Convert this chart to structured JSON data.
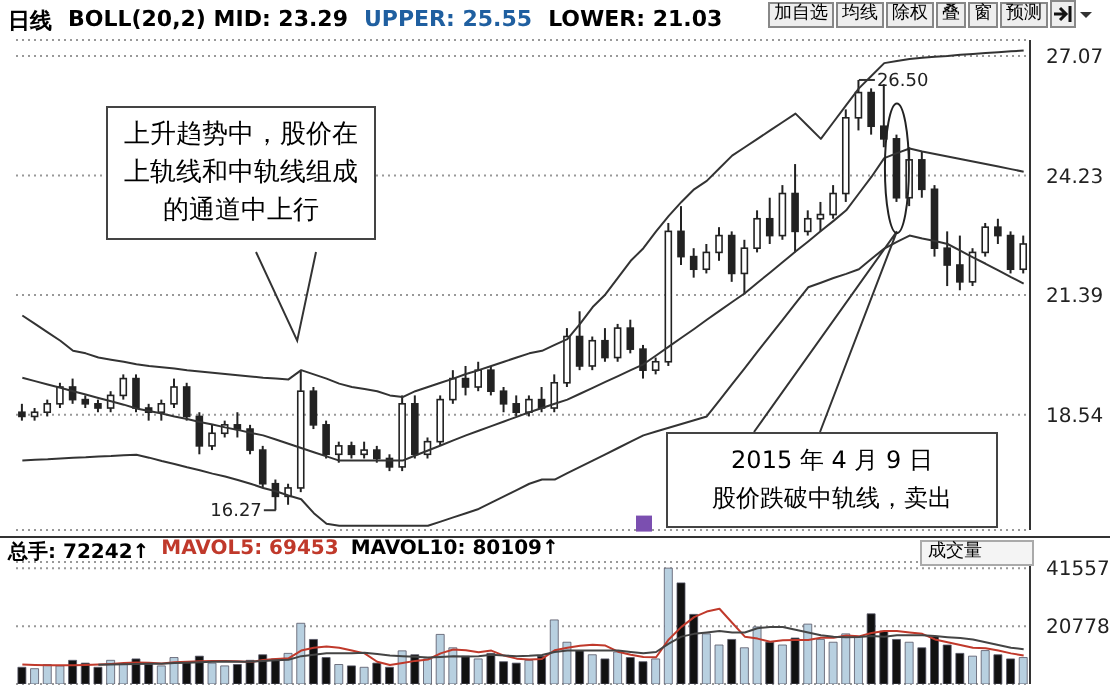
{
  "chart_data": [
    {
      "type": "candlestick",
      "title": "日线",
      "color": "#222222",
      "categories": [
        null,
        null,
        null,
        null,
        null,
        null,
        null,
        null,
        null,
        null,
        null,
        null,
        null,
        null,
        null,
        null,
        null,
        null,
        null,
        null,
        null,
        null,
        null,
        null,
        null,
        null,
        null,
        null,
        null,
        null,
        null,
        null,
        null,
        null,
        null,
        null,
        null,
        null,
        null,
        null,
        null,
        null,
        null,
        null,
        null,
        null,
        null,
        null,
        null,
        null,
        null,
        null,
        null,
        null,
        null,
        null,
        null,
        null,
        null,
        null,
        null,
        null,
        null,
        null,
        null,
        null,
        null,
        null,
        null,
        null,
        null,
        null,
        null,
        null,
        null,
        null,
        null,
        null,
        null,
        null
      ],
      "ohlc": [
        [
          18.6,
          18.8,
          18.4,
          18.5
        ],
        [
          18.5,
          18.7,
          18.4,
          18.6
        ],
        [
          18.6,
          18.9,
          18.5,
          18.8
        ],
        [
          18.8,
          19.3,
          18.7,
          19.2
        ],
        [
          19.2,
          19.4,
          18.8,
          18.9
        ],
        [
          18.9,
          19.0,
          18.7,
          18.8
        ],
        [
          18.8,
          18.9,
          18.6,
          18.7
        ],
        [
          18.7,
          19.1,
          18.6,
          19.0
        ],
        [
          19.0,
          19.5,
          18.9,
          19.4
        ],
        [
          19.4,
          19.5,
          18.6,
          18.7
        ],
        [
          18.7,
          18.8,
          18.4,
          18.6
        ],
        [
          18.6,
          18.9,
          18.4,
          18.8
        ],
        [
          18.8,
          19.4,
          18.7,
          19.2
        ],
        [
          19.2,
          19.3,
          18.4,
          18.5
        ],
        [
          18.5,
          18.6,
          17.6,
          17.8
        ],
        [
          17.8,
          18.3,
          17.7,
          18.1
        ],
        [
          18.1,
          18.4,
          18.0,
          18.3
        ],
        [
          18.3,
          18.6,
          18.0,
          18.2
        ],
        [
          18.2,
          18.3,
          17.6,
          17.7
        ],
        [
          17.7,
          17.8,
          16.8,
          16.9
        ],
        [
          16.9,
          17.0,
          16.27,
          16.6
        ],
        [
          16.6,
          16.9,
          16.4,
          16.8
        ],
        [
          16.8,
          19.6,
          16.7,
          19.1
        ],
        [
          19.1,
          19.2,
          18.2,
          18.3
        ],
        [
          18.3,
          18.4,
          17.5,
          17.6
        ],
        [
          17.6,
          17.9,
          17.4,
          17.8
        ],
        [
          17.8,
          17.9,
          17.5,
          17.6
        ],
        [
          17.6,
          17.9,
          17.5,
          17.7
        ],
        [
          17.7,
          17.8,
          17.4,
          17.5
        ],
        [
          17.5,
          17.6,
          17.2,
          17.3
        ],
        [
          17.3,
          19.0,
          17.2,
          18.8
        ],
        [
          18.8,
          19.0,
          17.5,
          17.6
        ],
        [
          17.6,
          18.0,
          17.5,
          17.9
        ],
        [
          17.9,
          19.0,
          17.8,
          18.9
        ],
        [
          18.9,
          19.6,
          18.8,
          19.4
        ],
        [
          19.4,
          19.7,
          19.0,
          19.2
        ],
        [
          19.2,
          19.8,
          19.1,
          19.6
        ],
        [
          19.6,
          19.7,
          19.0,
          19.1
        ],
        [
          19.1,
          19.2,
          18.6,
          18.8
        ],
        [
          18.8,
          19.0,
          18.5,
          18.6
        ],
        [
          18.6,
          19.0,
          18.5,
          18.9
        ],
        [
          18.9,
          19.2,
          18.6,
          18.7
        ],
        [
          18.7,
          19.5,
          18.6,
          19.3
        ],
        [
          19.3,
          20.6,
          19.2,
          20.4
        ],
        [
          20.4,
          21.0,
          19.6,
          19.7
        ],
        [
          19.7,
          20.4,
          19.6,
          20.3
        ],
        [
          20.3,
          20.6,
          19.8,
          19.9
        ],
        [
          19.9,
          20.7,
          19.8,
          20.6
        ],
        [
          20.6,
          20.8,
          20.0,
          20.1
        ],
        [
          20.1,
          20.2,
          19.4,
          19.6
        ],
        [
          19.6,
          19.9,
          19.5,
          19.8
        ],
        [
          19.8,
          23.1,
          19.7,
          22.9
        ],
        [
          22.9,
          23.5,
          22.1,
          22.3
        ],
        [
          22.3,
          22.5,
          21.8,
          22.0
        ],
        [
          22.0,
          22.6,
          21.9,
          22.4
        ],
        [
          22.4,
          23.0,
          22.2,
          22.8
        ],
        [
          22.8,
          22.9,
          21.7,
          21.9
        ],
        [
          21.9,
          22.7,
          21.4,
          22.5
        ],
        [
          22.5,
          23.4,
          22.4,
          23.2
        ],
        [
          23.2,
          23.7,
          22.6,
          22.8
        ],
        [
          22.8,
          24.0,
          22.7,
          23.8
        ],
        [
          23.8,
          24.5,
          22.4,
          22.9
        ],
        [
          22.9,
          23.4,
          22.8,
          23.2
        ],
        [
          23.2,
          23.6,
          22.9,
          23.3
        ],
        [
          23.3,
          24.0,
          23.2,
          23.8
        ],
        [
          23.8,
          25.8,
          23.6,
          25.6
        ],
        [
          25.6,
          26.5,
          25.3,
          26.2
        ],
        [
          26.2,
          26.3,
          25.2,
          25.4
        ],
        [
          25.4,
          26.4,
          24.9,
          25.1
        ],
        [
          25.1,
          25.2,
          23.6,
          23.7
        ],
        [
          23.7,
          24.9,
          23.5,
          24.6
        ],
        [
          24.6,
          24.8,
          23.7,
          23.9
        ],
        [
          23.9,
          24.0,
          22.3,
          22.5
        ],
        [
          22.5,
          22.9,
          21.6,
          22.1
        ],
        [
          22.1,
          22.8,
          21.5,
          21.7
        ],
        [
          21.7,
          22.5,
          21.6,
          22.4
        ],
        [
          22.4,
          23.1,
          22.3,
          23.0
        ],
        [
          23.0,
          23.2,
          22.6,
          22.8
        ],
        [
          22.8,
          22.9,
          21.9,
          22.0
        ],
        [
          22.0,
          22.8,
          21.9,
          22.6
        ]
      ],
      "series": [
        {
          "type": "line",
          "color": "#333333",
          "values": [
            20.9,
            20.7,
            20.5,
            20.3,
            20.06,
            20.0,
            19.9,
            19.85,
            19.8,
            19.74,
            19.7,
            19.67,
            19.64,
            19.6,
            19.57,
            19.54,
            19.51,
            19.48,
            19.45,
            19.42,
            19.4,
            19.38,
            19.6,
            19.5,
            19.4,
            19.28,
            19.2,
            19.15,
            19.1,
            19.0,
            18.96,
            19.1,
            19.2,
            19.3,
            19.4,
            19.51,
            19.6,
            19.7,
            19.8,
            19.9,
            20.0,
            20.06,
            20.2,
            20.34,
            20.7,
            21.1,
            21.4,
            21.8,
            22.2,
            22.5,
            22.9,
            23.27,
            23.6,
            23.9,
            24.1,
            24.4,
            24.7,
            24.9,
            25.1,
            25.3,
            25.5,
            25.7,
            25.4,
            25.1,
            25.5,
            25.9,
            26.3,
            26.6,
            26.9,
            26.95,
            27.0,
            27.03,
            27.05,
            27.07,
            27.1,
            27.12,
            27.14,
            27.16,
            27.18,
            27.2
          ]
        },
        {
          "type": "line",
          "color": "#333333",
          "values": [
            19.42,
            19.34,
            19.26,
            19.18,
            19.1,
            19.02,
            18.94,
            18.86,
            18.78,
            18.69,
            18.63,
            18.57,
            18.5,
            18.44,
            18.37,
            18.31,
            18.24,
            18.18,
            18.11,
            18.05,
            17.95,
            17.85,
            17.75,
            17.65,
            17.55,
            17.45,
            17.45,
            17.45,
            17.45,
            17.45,
            17.45,
            17.57,
            17.69,
            17.81,
            17.93,
            18.05,
            18.16,
            18.27,
            18.38,
            18.49,
            18.6,
            18.7,
            18.8,
            18.9,
            19.04,
            19.18,
            19.32,
            19.46,
            19.6,
            19.74,
            19.95,
            20.16,
            20.37,
            20.58,
            20.8,
            21.01,
            21.22,
            21.43,
            21.68,
            21.92,
            22.17,
            22.42,
            22.66,
            22.91,
            23.15,
            23.4,
            23.8,
            24.2,
            24.64,
            24.76,
            24.87,
            24.8,
            24.74,
            24.68,
            24.62,
            24.56,
            24.5,
            24.44,
            24.38,
            24.32
          ]
        },
        {
          "type": "line",
          "color": "#333333",
          "values": [
            17.45,
            17.47,
            17.48,
            17.5,
            17.52,
            17.53,
            17.55,
            17.56,
            17.58,
            17.59,
            17.52,
            17.44,
            17.37,
            17.29,
            17.22,
            17.14,
            17.07,
            16.99,
            16.9,
            16.8,
            16.72,
            16.62,
            16.53,
            16.2,
            15.95,
            15.9,
            15.9,
            15.9,
            15.9,
            15.9,
            15.9,
            15.9,
            15.9,
            16.0,
            16.1,
            16.2,
            16.3,
            16.45,
            16.6,
            16.75,
            16.9,
            17.0,
            17.0,
            17.15,
            17.3,
            17.45,
            17.6,
            17.75,
            17.9,
            18.05,
            18.14,
            18.23,
            18.32,
            18.41,
            18.5,
            18.88,
            19.27,
            19.65,
            20.04,
            20.42,
            20.8,
            21.19,
            21.57,
            21.68,
            21.79,
            21.89,
            22.0,
            22.25,
            22.49,
            22.65,
            22.8,
            22.73,
            22.67,
            22.6,
            22.44,
            22.28,
            22.13,
            21.97,
            21.81,
            21.66
          ]
        }
      ],
      "ylim": [
        15.8,
        27.45
      ],
      "yticks": [
        18.54,
        21.39,
        24.23,
        27.07
      ],
      "grid": "y",
      "tick_labels": "y",
      "annotations": [
        "BOLL(20,2) MID: 23.29",
        "UPPER: 25.55",
        "LOWER: 21.03",
        "加自选",
        "均线",
        "除权",
        "叠",
        "窗",
        "预测",
        "上升趋势中，股价在上轨线和中轨线组成的通道中上行",
        "2015 年 4 月 9 日",
        "股价跌破中轨线，卖出",
        "26.50",
        "16.27"
      ]
    },
    {
      "type": "bar",
      "categories": [
        null,
        null,
        null,
        null,
        null,
        null,
        null,
        null,
        null,
        null,
        null,
        null,
        null,
        null,
        null,
        null,
        null,
        null,
        null,
        null,
        null,
        null,
        null,
        null,
        null,
        null,
        null,
        null,
        null,
        null,
        null,
        null,
        null,
        null,
        null,
        null,
        null,
        null,
        null,
        null,
        null,
        null,
        null,
        null,
        null,
        null,
        null,
        null,
        null,
        null,
        null,
        null,
        null,
        null,
        null,
        null,
        null,
        null,
        null,
        null,
        null,
        null,
        null,
        null,
        null,
        null,
        null,
        null,
        null,
        null,
        null,
        null,
        null,
        null,
        null,
        null,
        null,
        null,
        null,
        null
      ],
      "series": [
        {
          "type": "bar",
          "values": [
            6000,
            5500,
            7000,
            6500,
            8500,
            7500,
            6000,
            8500,
            7000,
            9000,
            7000,
            6500,
            9500,
            8000,
            10000,
            7500,
            6500,
            7000,
            8500,
            10500,
            9000,
            11000,
            21800,
            16000,
            9500,
            7000,
            6500,
            6000,
            7500,
            6000,
            11900,
            10500,
            9000,
            17800,
            13000,
            10000,
            9000,
            11000,
            8000,
            7500,
            8500,
            10000,
            23000,
            15000,
            12000,
            10500,
            9000,
            11500,
            9500,
            8000,
            9000,
            41600,
            36300,
            25000,
            18000,
            14000,
            16000,
            13000,
            20500,
            15000,
            14000,
            16500,
            21500,
            16000,
            15000,
            18000,
            17000,
            25200,
            19000,
            16000,
            15000,
            13000,
            17000,
            14000,
            11000,
            10000,
            12000,
            10500,
            9000,
            9500
          ],
          "colors": [
            "#111111",
            "#b8d0e0",
            "#b8d0e0",
            "#b8d0e0",
            "#111111",
            "#111111",
            "#111111",
            "#b8d0e0",
            "#b8d0e0",
            "#111111",
            "#111111",
            "#b8d0e0",
            "#b8d0e0",
            "#111111",
            "#111111",
            "#b8d0e0",
            "#b8d0e0",
            "#111111",
            "#111111",
            "#111111",
            "#111111",
            "#b8d0e0",
            "#b8d0e0",
            "#111111",
            "#111111",
            "#b8d0e0",
            "#111111",
            "#b8d0e0",
            "#111111",
            "#111111",
            "#b8d0e0",
            "#111111",
            "#b8d0e0",
            "#b8d0e0",
            "#b8d0e0",
            "#111111",
            "#b8d0e0",
            "#111111",
            "#111111",
            "#111111",
            "#b8d0e0",
            "#111111",
            "#b8d0e0",
            "#b8d0e0",
            "#111111",
            "#b8d0e0",
            "#111111",
            "#b8d0e0",
            "#111111",
            "#111111",
            "#b8d0e0",
            "#b8d0e0",
            "#111111",
            "#111111",
            "#b8d0e0",
            "#b8d0e0",
            "#111111",
            "#b8d0e0",
            "#b8d0e0",
            "#111111",
            "#b8d0e0",
            "#111111",
            "#b8d0e0",
            "#b8d0e0",
            "#b8d0e0",
            "#b8d0e0",
            "#b8d0e0",
            "#111111",
            "#111111",
            "#111111",
            "#b8d0e0",
            "#111111",
            "#111111",
            "#111111",
            "#111111",
            "#b8d0e0",
            "#b8d0e0",
            "#111111",
            "#111111",
            "#b8d0e0"
          ]
        },
        {
          "type": "line",
          "color": "#c0392b",
          "values": [
            7000,
            6800,
            6700,
            6700,
            6700,
            6800,
            7000,
            7200,
            7500,
            7700,
            7600,
            7400,
            7800,
            8000,
            8200,
            8300,
            8300,
            8200,
            7900,
            8600,
            9000,
            9200,
            12000,
            13000,
            13500,
            13000,
            12000,
            11000,
            8000,
            6800,
            7500,
            8300,
            8800,
            11000,
            12400,
            12100,
            11400,
            12000,
            10200,
            9100,
            8800,
            9000,
            12100,
            13000,
            13700,
            14100,
            13800,
            11600,
            10500,
            9700,
            9600,
            16000,
            20500,
            24000,
            26000,
            27000,
            22000,
            17000,
            16300,
            15200,
            15700,
            15800,
            15800,
            16600,
            16600,
            17400,
            17100,
            18300,
            19000,
            19000,
            18500,
            18000,
            16000,
            15000,
            14000,
            13000,
            12800,
            12000,
            11000,
            10200
          ]
        },
        {
          "type": "line",
          "color": "#444444",
          "values": [
            null,
            null,
            null,
            null,
            null,
            null,
            6900,
            7000,
            7100,
            7200,
            7300,
            7300,
            7500,
            7600,
            7800,
            8000,
            8100,
            8000,
            8000,
            8300,
            8500,
            8700,
            10000,
            10500,
            11000,
            11000,
            11000,
            11200,
            10800,
            10200,
            10000,
            9800,
            9500,
            9700,
            10000,
            9900,
            10000,
            10500,
            10200,
            10000,
            10100,
            10400,
            11500,
            12000,
            12000,
            12000,
            12000,
            12000,
            11500,
            11000,
            11500,
            14500,
            17000,
            18000,
            18500,
            19000,
            18500,
            18500,
            20000,
            20500,
            20500,
            19500,
            18500,
            17500,
            17000,
            16800,
            16900,
            17200,
            17000,
            17500,
            17500,
            17500,
            17200,
            16800,
            16500,
            16000,
            15000,
            14000,
            13000,
            12500
          ]
        }
      ],
      "ylim": [
        0,
        43800
      ],
      "yticks": [
        20778,
        41557
      ],
      "grid": "y",
      "tick_labels": "y",
      "annotations": [
        "总手: 72242↑",
        "MAVOL5: 69453",
        "MAVOL10: 80109↑",
        "成交量"
      ]
    }
  ]
}
